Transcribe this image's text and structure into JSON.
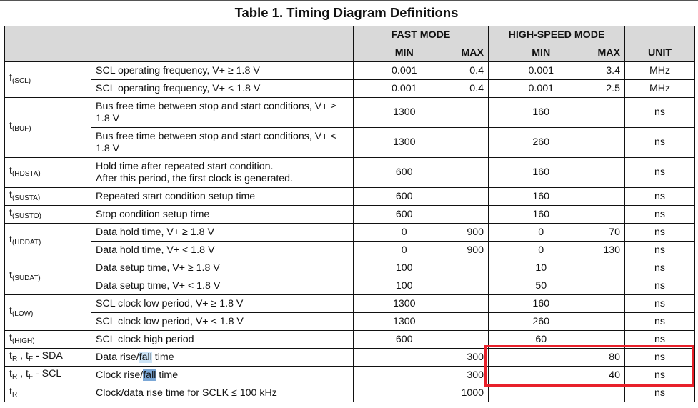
{
  "title": "Table 1. Timing Diagram Definitions",
  "header": {
    "fast_mode": "FAST MODE",
    "high_speed_mode": "HIGH-SPEED MODE",
    "min": "MIN",
    "max": "MAX",
    "unit": "UNIT"
  },
  "colors": {
    "highlight_light": "#cce4f7",
    "highlight_dark": "#7ba7d6",
    "annotation_box": "#e8202a",
    "header_bg": "#d9d9d9"
  },
  "groups": [
    {
      "symbol": [
        {
          "t": "f"
        },
        {
          "sub": "(SCL)"
        }
      ],
      "rows": [
        {
          "desc": [
            "SCL operating frequency, V+ ≥ 1.8 V"
          ],
          "fmin": "0.001",
          "fmax": "0.4",
          "hmin": "0.001",
          "hmax": "3.4",
          "unit": "MHz"
        },
        {
          "desc": [
            "SCL operating frequency, V+ < 1.8 V"
          ],
          "fmin": "0.001",
          "fmax": "0.4",
          "hmin": "0.001",
          "hmax": "2.5",
          "unit": "MHz"
        }
      ]
    },
    {
      "symbol": [
        {
          "t": "t"
        },
        {
          "sub": "(BUF)"
        }
      ],
      "rows": [
        {
          "desc": [
            "Bus free time between stop and start conditions, V+ ≥ 1.8 V"
          ],
          "fmin": "1300",
          "fmax": "",
          "hmin": "160",
          "hmax": "",
          "unit": "ns"
        },
        {
          "desc": [
            "Bus free time between stop and start conditions, V+ < 1.8 V"
          ],
          "fmin": "1300",
          "fmax": "",
          "hmin": "260",
          "hmax": "",
          "unit": "ns"
        }
      ]
    },
    {
      "symbol": [
        {
          "t": "t"
        },
        {
          "sub": "(HDSTA)"
        }
      ],
      "rows": [
        {
          "desc": [
            "Hold time after repeated start condition.",
            "After this period, the first clock is generated."
          ],
          "fmin": "600",
          "fmax": "",
          "hmin": "160",
          "hmax": "",
          "unit": "ns"
        }
      ]
    },
    {
      "symbol": [
        {
          "t": "t"
        },
        {
          "sub": "(SUSTA)"
        }
      ],
      "rows": [
        {
          "desc": [
            "Repeated start condition setup time"
          ],
          "fmin": "600",
          "fmax": "",
          "hmin": "160",
          "hmax": "",
          "unit": "ns"
        }
      ]
    },
    {
      "symbol": [
        {
          "t": "t"
        },
        {
          "sub": "(SUSTO)"
        }
      ],
      "rows": [
        {
          "desc": [
            "Stop condition setup time"
          ],
          "fmin": "600",
          "fmax": "",
          "hmin": "160",
          "hmax": "",
          "unit": "ns"
        }
      ]
    },
    {
      "symbol": [
        {
          "t": "t"
        },
        {
          "sub": "(HDDAT)"
        }
      ],
      "rows": [
        {
          "desc": [
            "Data hold time, V+ ≥ 1.8 V"
          ],
          "fmin": "0",
          "fmax": "900",
          "hmin": "0",
          "hmax": "70",
          "unit": "ns"
        },
        {
          "desc": [
            "Data hold time, V+ < 1.8 V"
          ],
          "fmin": "0",
          "fmax": "900",
          "hmin": "0",
          "hmax": "130",
          "unit": "ns"
        }
      ]
    },
    {
      "symbol": [
        {
          "t": "t"
        },
        {
          "sub": "(SUDAT)"
        }
      ],
      "rows": [
        {
          "desc": [
            "Data setup time, V+ ≥ 1.8 V"
          ],
          "fmin": "100",
          "fmax": "",
          "hmin": "10",
          "hmax": "",
          "unit": "ns"
        },
        {
          "desc": [
            "Data setup time, V+ < 1.8 V"
          ],
          "fmin": "100",
          "fmax": "",
          "hmin": "50",
          "hmax": "",
          "unit": "ns"
        }
      ]
    },
    {
      "symbol": [
        {
          "t": "t"
        },
        {
          "sub": "(LOW)"
        }
      ],
      "rows": [
        {
          "desc": [
            "SCL clock low period, V+ ≥ 1.8 V"
          ],
          "fmin": "1300",
          "fmax": "",
          "hmin": "160",
          "hmax": "",
          "unit": "ns"
        },
        {
          "desc": [
            "SCL clock low period, V+ < 1.8 V"
          ],
          "fmin": "1300",
          "fmax": "",
          "hmin": "260",
          "hmax": "",
          "unit": "ns"
        }
      ]
    },
    {
      "symbol": [
        {
          "t": "t"
        },
        {
          "sub": "(HIGH)"
        }
      ],
      "rows": [
        {
          "desc": [
            "SCL clock high period"
          ],
          "fmin": "600",
          "fmax": "",
          "hmin": "60",
          "hmax": "",
          "unit": "ns"
        }
      ]
    },
    {
      "symbol": [
        {
          "t": "t"
        },
        {
          "sub": "R"
        },
        {
          "t": " , t"
        },
        {
          "sub": "F"
        },
        {
          "t": " - SDA"
        }
      ],
      "rows": [
        {
          "desc": [
            "Data rise/"
          ],
          "hl": "fall",
          "hl_level": "light",
          "post": " time",
          "fmin": "",
          "fmax": "300",
          "hmin": "",
          "hmax": "80",
          "unit": "ns"
        }
      ]
    },
    {
      "symbol": [
        {
          "t": "t"
        },
        {
          "sub": "R"
        },
        {
          "t": " , t"
        },
        {
          "sub": "F"
        },
        {
          "t": " - SCL"
        }
      ],
      "rows": [
        {
          "desc": [
            "Clock rise/"
          ],
          "hl": "fall",
          "hl_level": "dark",
          "post": " time",
          "fmin": "",
          "fmax": "300",
          "hmin": "",
          "hmax": "40",
          "unit": "ns"
        }
      ]
    },
    {
      "symbol": [
        {
          "t": "t"
        },
        {
          "sub": "R"
        }
      ],
      "rows": [
        {
          "desc": [
            "Clock/data rise time for SCLK ≤ 100 kHz"
          ],
          "fmin": "",
          "fmax": "1000",
          "hmin": "",
          "hmax": "",
          "unit": "ns"
        }
      ]
    }
  ]
}
